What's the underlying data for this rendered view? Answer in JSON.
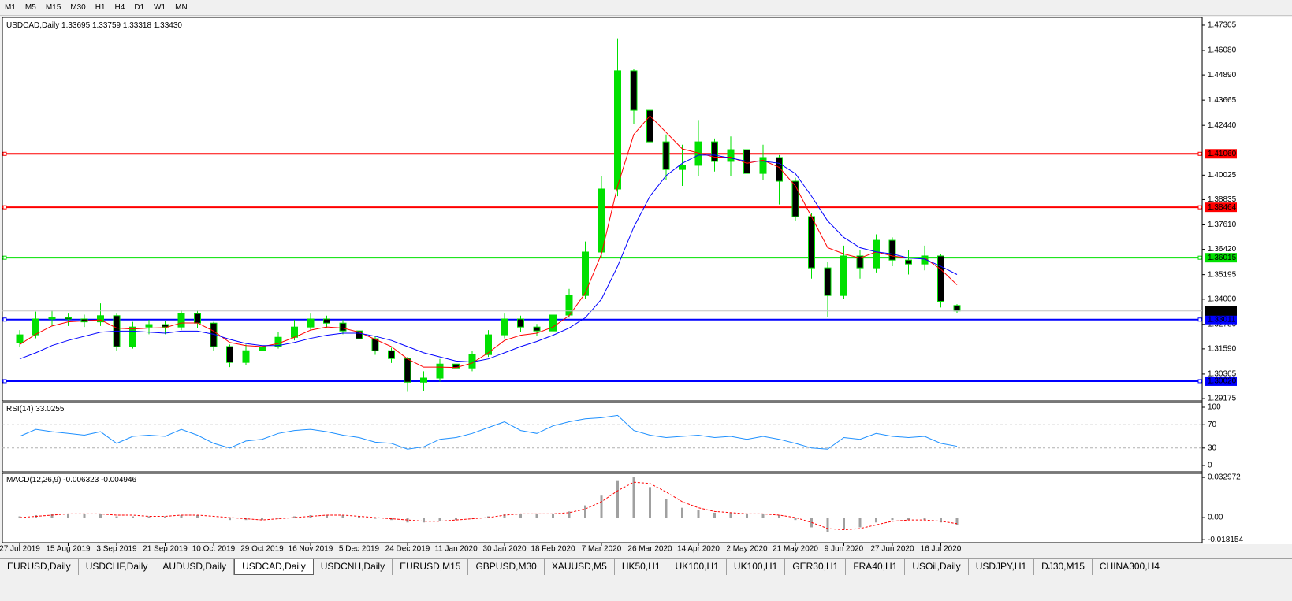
{
  "toolbar": {
    "buttons": [
      "M1",
      "M5",
      "M15",
      "M30",
      "H1",
      "H4",
      "D1",
      "W1",
      "MN"
    ]
  },
  "tabs": {
    "items": [
      "EURUSD,Daily",
      "USDCHF,Daily",
      "AUDUSD,Daily",
      "USDCAD,Daily",
      "USDCNH,Daily",
      "EURUSD,M15",
      "GBPUSD,M30",
      "XAUUSD,M5",
      "HK50,H1",
      "UK100,H1",
      "UK100,H1",
      "GER30,H1",
      "FRA40,H1",
      "USOil,Daily",
      "USDJPY,H1",
      "DJ30,M15",
      "CHINA300,H4"
    ],
    "active": "USDCAD,Daily"
  },
  "chart_data": [
    {
      "type": "candlestick",
      "title": "USDCAD,Daily",
      "categories": [
        "27 Jul 2019",
        null,
        null,
        "15 Aug 2019",
        null,
        null,
        "3 Sep 2019",
        null,
        null,
        "21 Sep 2019",
        null,
        null,
        "10 Oct 2019",
        null,
        null,
        "29 Oct 2019",
        null,
        null,
        "16 Nov 2019",
        null,
        null,
        "5 Dec 2019",
        null,
        null,
        "24 Dec 2019",
        null,
        null,
        "11 Jan 2020",
        null,
        null,
        "30 Jan 2020",
        null,
        null,
        "18 Feb 2020",
        null,
        null,
        "7 Mar 2020",
        null,
        null,
        "26 Mar 2020",
        null,
        null,
        "14 Apr 2020",
        null,
        null,
        "2 May 2020",
        null,
        null,
        "21 May 2020",
        null,
        null,
        "9 Jun 2020",
        null,
        null,
        "27 Jun 2020",
        null,
        null,
        "16 Jul 2020",
        null
      ],
      "open": [
        1.319,
        1.3227,
        1.3304,
        1.331,
        1.3304,
        1.329,
        1.332,
        1.317,
        1.3265,
        1.3277,
        1.3265,
        1.333,
        1.3284,
        1.317,
        1.3093,
        1.315,
        1.317,
        1.3215,
        1.3265,
        1.3304,
        1.3284,
        1.3246,
        1.3208,
        1.315,
        1.3112,
        1.2997,
        1.3017,
        1.3085,
        1.3066,
        1.3131,
        1.3227,
        1.3304,
        1.3265,
        1.3246,
        1.3323,
        1.3418,
        1.3629,
        1.3935,
        1.4509,
        1.4317,
        1.4164,
        1.403,
        1.405,
        1.4164,
        1.4069,
        1.4126,
        1.4011,
        1.4088,
        1.3973,
        1.3801,
        1.3552,
        1.3418,
        1.361,
        1.3552,
        1.3686,
        1.359,
        1.3571,
        1.361,
        1.33695
      ],
      "high": [
        1.325,
        1.334,
        1.3345,
        1.333,
        1.3325,
        1.338,
        1.333,
        1.329,
        1.33,
        1.3295,
        1.335,
        1.3345,
        1.329,
        1.318,
        1.318,
        1.32,
        1.324,
        1.33,
        1.333,
        1.332,
        1.33,
        1.326,
        1.322,
        1.3165,
        1.312,
        1.305,
        1.311,
        1.31,
        1.315,
        1.325,
        1.333,
        1.332,
        1.328,
        1.335,
        1.345,
        1.368,
        1.4,
        1.4667,
        1.452,
        1.43,
        1.42,
        1.415,
        1.427,
        1.418,
        1.419,
        1.415,
        1.415,
        1.41,
        1.399,
        1.382,
        1.358,
        1.366,
        1.364,
        1.3715,
        1.37,
        1.364,
        1.366,
        1.362,
        1.33759
      ],
      "low": [
        1.317,
        1.321,
        1.327,
        1.327,
        1.3265,
        1.327,
        1.315,
        1.316,
        1.323,
        1.323,
        1.325,
        1.326,
        1.315,
        1.307,
        1.308,
        1.313,
        1.316,
        1.32,
        1.325,
        1.326,
        1.323,
        1.319,
        1.313,
        1.309,
        1.295,
        1.2955,
        1.3,
        1.304,
        1.305,
        1.312,
        1.321,
        1.324,
        1.322,
        1.3235,
        1.331,
        1.34,
        1.36,
        1.39,
        1.425,
        1.405,
        1.398,
        1.395,
        1.4,
        1.402,
        1.4,
        1.398,
        1.398,
        1.386,
        1.378,
        1.35,
        1.3315,
        1.34,
        1.35,
        1.353,
        1.356,
        1.352,
        1.354,
        1.336,
        1.33318
      ],
      "close": [
        1.3227,
        1.3304,
        1.331,
        1.3304,
        1.329,
        1.332,
        1.317,
        1.3265,
        1.3277,
        1.3265,
        1.333,
        1.3284,
        1.317,
        1.3093,
        1.315,
        1.317,
        1.3215,
        1.3265,
        1.3304,
        1.3284,
        1.3246,
        1.3208,
        1.315,
        1.3112,
        1.2997,
        1.3017,
        1.3085,
        1.3066,
        1.3131,
        1.3227,
        1.3304,
        1.3265,
        1.3246,
        1.3323,
        1.3418,
        1.3629,
        1.3935,
        1.4509,
        1.4317,
        1.4164,
        1.403,
        1.405,
        1.4164,
        1.4069,
        1.4126,
        1.4011,
        1.4088,
        1.3973,
        1.3801,
        1.3552,
        1.3418,
        1.361,
        1.3552,
        1.3686,
        1.359,
        1.3571,
        1.361,
        1.339,
        1.3343
      ],
      "bull_color": "#00e000",
      "bear_color": "#000000",
      "series": [
        {
          "color": "#ff0000",
          "values": [
            1.318,
            1.323,
            1.327,
            1.329,
            1.3295,
            1.33,
            1.326,
            1.3255,
            1.326,
            1.3262,
            1.3285,
            1.3285,
            1.3245,
            1.319,
            1.3175,
            1.317,
            1.3185,
            1.3215,
            1.325,
            1.3265,
            1.326,
            1.324,
            1.3205,
            1.317,
            1.311,
            1.307,
            1.307,
            1.3068,
            1.309,
            1.314,
            1.32,
            1.3225,
            1.3235,
            1.3265,
            1.332,
            1.343,
            1.362,
            1.395,
            1.42,
            1.429,
            1.421,
            1.413,
            1.411,
            1.409,
            1.409,
            1.406,
            1.4075,
            1.404,
            1.395,
            1.38,
            1.365,
            1.362,
            1.36,
            1.363,
            1.361,
            1.36,
            1.36,
            1.3545,
            1.347
          ]
        },
        {
          "color": "#0000ff",
          "values": [
            1.311,
            1.314,
            1.3175,
            1.32,
            1.322,
            1.324,
            1.3245,
            1.3245,
            1.324,
            1.3235,
            1.3245,
            1.3245,
            1.323,
            1.3205,
            1.3185,
            1.3175,
            1.3175,
            1.319,
            1.321,
            1.3225,
            1.3235,
            1.3235,
            1.322,
            1.32,
            1.317,
            1.314,
            1.312,
            1.31,
            1.3095,
            1.311,
            1.314,
            1.317,
            1.3195,
            1.3225,
            1.326,
            1.331,
            1.34,
            1.356,
            1.375,
            1.39,
            1.4,
            1.406,
            1.41,
            1.41,
            1.4085,
            1.407,
            1.407,
            1.406,
            1.401,
            1.39,
            1.378,
            1.37,
            1.365,
            1.363,
            1.362,
            1.36,
            1.3595,
            1.356,
            1.352
          ]
        }
      ],
      "levels": [
        {
          "value": 1.4106,
          "label": "1.41060",
          "color": "#ff0000"
        },
        {
          "value": 1.38464,
          "label": "1.38464",
          "color": "#ff0000"
        },
        {
          "value": 1.36015,
          "label": "1.36015",
          "color": "#00e000"
        },
        {
          "value": 1.33011,
          "label": "1.33011",
          "color": "#0000ff"
        },
        {
          "value": 1.3002,
          "label": "1.30020",
          "color": "#0000ff"
        }
      ],
      "last_price": {
        "value": 1.3343,
        "label": "1.33430"
      },
      "ylim": [
        1.291,
        1.4761
      ],
      "yticks": [
        1.47305,
        {
          "value": 1.4608,
          "label": "1.46080"
        },
        {
          "value": 1.4489,
          "label": "1.44890"
        },
        1.43665,
        {
          "value": 1.4244,
          "label": "1.42440"
        },
        1.40025,
        1.38835,
        {
          "value": 1.3761,
          "label": "1.37610"
        },
        {
          "value": 1.3642,
          "label": "1.36420"
        },
        1.35195,
        {
          "value": 1.34,
          "label": "1.34000"
        },
        {
          "value": 1.3278,
          "label": "1.32780"
        },
        {
          "value": 1.3159,
          "label": "1.31590"
        },
        1.30365,
        1.29175
      ]
    },
    {
      "type": "line",
      "title": "RSI(14)",
      "color": "#1e90ff",
      "values": [
        50,
        62,
        58,
        55,
        52,
        58,
        38,
        50,
        52,
        50,
        62,
        52,
        38,
        30,
        42,
        45,
        55,
        60,
        62,
        58,
        52,
        48,
        40,
        38,
        28,
        32,
        45,
        48,
        55,
        65,
        75,
        60,
        55,
        68,
        75,
        80,
        82,
        86,
        60,
        52,
        48,
        50,
        52,
        48,
        50,
        45,
        50,
        45,
        38,
        30,
        28,
        48,
        45,
        55,
        50,
        48,
        50,
        38,
        33.0255
      ],
      "ylim": [
        0,
        100
      ],
      "yticks": [
        100,
        70,
        30,
        0
      ]
    },
    {
      "type": "macd",
      "title": "MACD(12,26,9)",
      "hist_color": "#a0a0a0",
      "signal_color": "#ff0000",
      "values": [
        0.001,
        0.002,
        0.003,
        0.003,
        0.003,
        0.003,
        0.001,
        0.001,
        0.001,
        0.001,
        0.002,
        0.002,
        0.0,
        -0.002,
        -0.002,
        -0.002,
        -0.001,
        0.001,
        0.002,
        0.002,
        0.002,
        0.001,
        -0.001,
        -0.002,
        -0.004,
        -0.004,
        -0.003,
        -0.002,
        -0.001,
        0.001,
        0.003,
        0.003,
        0.003,
        0.003,
        0.005,
        0.01,
        0.018,
        0.03,
        0.033,
        0.025,
        0.015,
        0.008,
        0.006,
        0.004,
        0.004,
        0.003,
        0.003,
        0.002,
        -0.002,
        -0.008,
        -0.012,
        -0.01,
        -0.008,
        -0.004,
        -0.002,
        -0.002,
        -0.002,
        -0.004,
        -0.006323
      ],
      "signal": [
        0.0,
        0.001,
        0.002,
        0.003,
        0.003,
        0.003,
        0.002,
        0.002,
        0.001,
        0.001,
        0.002,
        0.002,
        0.001,
        0.0,
        -0.001,
        -0.002,
        -0.001,
        0.0,
        0.001,
        0.002,
        0.002,
        0.001,
        0.0,
        -0.001,
        -0.002,
        -0.003,
        -0.003,
        -0.002,
        -0.001,
        0.0,
        0.002,
        0.003,
        0.003,
        0.003,
        0.004,
        0.007,
        0.013,
        0.022,
        0.029,
        0.028,
        0.021,
        0.013,
        0.008,
        0.005,
        0.004,
        0.003,
        0.003,
        0.002,
        0.0,
        -0.004,
        -0.009,
        -0.01,
        -0.009,
        -0.006,
        -0.003,
        -0.002,
        -0.002,
        -0.003,
        -0.004946
      ],
      "ylim": [
        -0.02,
        0.0356
      ],
      "yticks": [
        0.032972,
        {
          "value": 0,
          "label": "0.00"
        },
        -0.018154
      ]
    }
  ]
}
